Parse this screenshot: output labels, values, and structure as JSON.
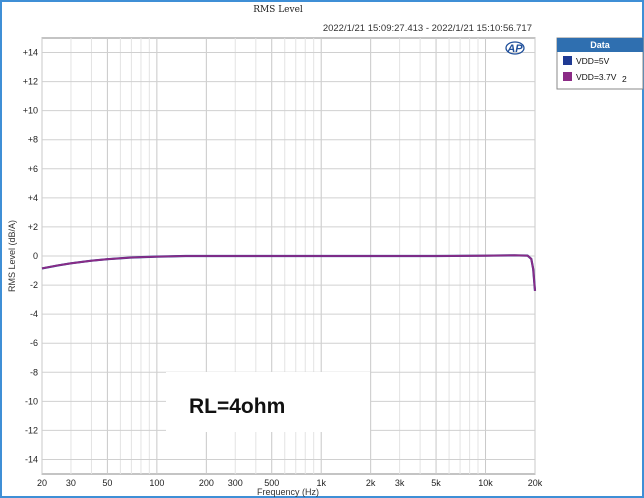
{
  "chart_data": {
    "type": "line",
    "title": "RMS Level",
    "subtitle": "2022/1/21 15:09:27.413 - 2022/1/21 15:10:56.717",
    "xlabel": "Frequency (Hz)",
    "ylabel": "RMS Level (dB/A)",
    "x_scale": "log",
    "xlim": [
      20,
      20000
    ],
    "ylim": [
      -15,
      15
    ],
    "x_ticks": [
      {
        "v": 20,
        "label": "20"
      },
      {
        "v": 30,
        "label": "30"
      },
      {
        "v": 50,
        "label": "50"
      },
      {
        "v": 100,
        "label": "100"
      },
      {
        "v": 200,
        "label": "200"
      },
      {
        "v": 300,
        "label": "300"
      },
      {
        "v": 500,
        "label": "500"
      },
      {
        "v": 1000,
        "label": "1k"
      },
      {
        "v": 2000,
        "label": "2k"
      },
      {
        "v": 3000,
        "label": "3k"
      },
      {
        "v": 5000,
        "label": "5k"
      },
      {
        "v": 10000,
        "label": "10k"
      },
      {
        "v": 20000,
        "label": "20k"
      }
    ],
    "y_ticks": [
      {
        "v": 14,
        "label": "+14"
      },
      {
        "v": 12,
        "label": "+12"
      },
      {
        "v": 10,
        "label": "+10"
      },
      {
        "v": 8,
        "label": "+8"
      },
      {
        "v": 6,
        "label": "+6"
      },
      {
        "v": 4,
        "label": "+4"
      },
      {
        "v": 2,
        "label": "+2"
      },
      {
        "v": 0,
        "label": "0"
      },
      {
        "v": -2,
        "label": "-2"
      },
      {
        "v": -4,
        "label": "-4"
      },
      {
        "v": -6,
        "label": "-6"
      },
      {
        "v": -8,
        "label": "-8"
      },
      {
        "v": -10,
        "label": "-10"
      },
      {
        "v": -12,
        "label": "-12"
      },
      {
        "v": -14,
        "label": "-14"
      }
    ],
    "grid": true,
    "legend_position": "right",
    "legend_title": "Data",
    "series": [
      {
        "name": "VDD=5V",
        "color": "#1f3a93",
        "x": [
          20,
          25,
          30,
          40,
          50,
          70,
          100,
          150,
          200,
          500,
          1000,
          5000,
          10000,
          15000,
          18000,
          19000,
          19500,
          20000
        ],
        "y": [
          -0.85,
          -0.65,
          -0.5,
          -0.32,
          -0.22,
          -0.1,
          -0.04,
          0.0,
          0.0,
          0.0,
          0.0,
          0.0,
          0.02,
          0.05,
          0.03,
          -0.2,
          -0.9,
          -2.4
        ]
      },
      {
        "name": "VDD=3.7V",
        "label_suffix": "2",
        "color": "#8b2b86",
        "x": [
          20,
          25,
          30,
          40,
          50,
          70,
          100,
          150,
          200,
          500,
          1000,
          5000,
          10000,
          15000,
          18000,
          19000,
          19500,
          20000
        ],
        "y": [
          -0.85,
          -0.65,
          -0.5,
          -0.32,
          -0.22,
          -0.1,
          -0.04,
          0.0,
          0.0,
          0.0,
          0.0,
          0.0,
          0.02,
          0.05,
          0.03,
          -0.2,
          -0.9,
          -2.4
        ]
      }
    ],
    "annotation": "RL=4ohm",
    "logo_text": "AP"
  }
}
